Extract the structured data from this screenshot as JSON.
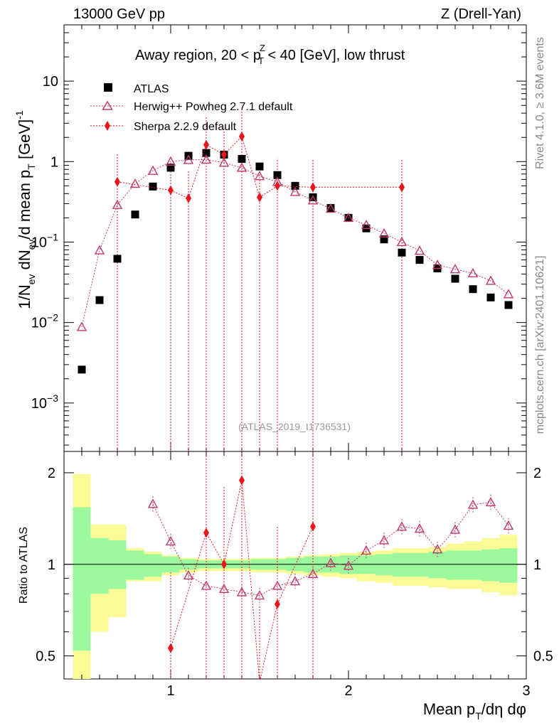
{
  "header": {
    "left": "13000 GeV pp",
    "right": "Z (Drell-Yan)"
  },
  "side_text": {
    "top": "Rivet 4.1.0, ≥ 3.6M events",
    "bottom": "mcplots.cern.ch [arXiv:2401.10621]"
  },
  "chart_data": [
    {
      "type": "scatter",
      "scale": "log",
      "title": "Away region, 20 < pTZ < 40 [GeV], low thrust",
      "title_parts": {
        "a": "Away region, 20 < p",
        "sup": "Z",
        "sub": "T",
        "b": " < 40 [GeV], low thrust"
      },
      "ylabel": "1/Nev dNev/d mean pT [GeV]-1",
      "ylabel_parts": {
        "a": "1/N",
        "s1": "ev",
        "b": " dN",
        "s2": "ev",
        "c": "/d mean p",
        "s3": "T",
        "d": " [GeV]",
        "s4": "-1"
      },
      "watermark": "(ATLAS_2019_I1736531)",
      "xlim": [
        0.4,
        3.0
      ],
      "ylim": [
        0.00025,
        50
      ],
      "y_ticks": [
        {
          "value": 0.001,
          "base": "10",
          "exp": "−3"
        },
        {
          "value": 0.01,
          "base": "10",
          "exp": "−2"
        },
        {
          "value": 0.1,
          "base": "10",
          "exp": "−1"
        },
        {
          "value": 1,
          "label": "1"
        },
        {
          "value": 10,
          "label": "10"
        }
      ],
      "legend": {
        "atlas": "ATLAS",
        "herwig": "Herwig++ Powheg 2.7.1 default",
        "sherpa": "Sherpa 2.2.9 default"
      },
      "series": [
        {
          "name": "ATLAS",
          "color": "#000000",
          "marker": "square",
          "x": [
            0.5,
            0.6,
            0.7,
            0.8,
            0.9,
            1.0,
            1.1,
            1.2,
            1.3,
            1.4,
            1.5,
            1.6,
            1.7,
            1.8,
            1.9,
            2.0,
            2.1,
            2.2,
            2.3,
            2.4,
            2.5,
            2.6,
            2.7,
            2.8,
            2.9
          ],
          "y": [
            0.0026,
            0.019,
            0.062,
            0.22,
            0.49,
            0.84,
            1.18,
            1.28,
            1.22,
            1.08,
            0.87,
            0.68,
            0.5,
            0.36,
            0.265,
            0.2,
            0.148,
            0.108,
            0.074,
            0.06,
            0.047,
            0.035,
            0.026,
            0.0205,
            0.0165
          ]
        },
        {
          "name": "Herwig++ Powheg 2.7.1 default",
          "color": "#c1386e",
          "marker": "triangle",
          "x": [
            0.5,
            0.6,
            0.7,
            0.8,
            0.9,
            1.0,
            1.1,
            1.2,
            1.3,
            1.4,
            1.5,
            1.6,
            1.7,
            1.8,
            1.9,
            2.0,
            2.1,
            2.2,
            2.3,
            2.4,
            2.5,
            2.6,
            2.7,
            2.8,
            2.9
          ],
          "y": [
            0.0088,
            0.079,
            0.29,
            0.53,
            0.77,
            1.0,
            1.05,
            1.06,
            0.97,
            0.84,
            0.66,
            0.56,
            0.42,
            0.33,
            0.26,
            0.2,
            0.163,
            0.128,
            0.1,
            0.078,
            0.052,
            0.046,
            0.041,
            0.033,
            0.0225
          ]
        },
        {
          "name": "Sherpa 2.2.9 default",
          "color": "#e8161c",
          "marker": "diamond",
          "x": [
            0.7,
            1.0,
            1.1,
            1.2,
            1.3,
            1.4,
            1.5,
            1.6,
            1.8,
            2.3
          ],
          "y": [
            0.56,
            0.44,
            0.35,
            1.62,
            1.22,
            2.05,
            0.36,
            0.5,
            0.48,
            0.48
          ]
        }
      ]
    },
    {
      "type": "scatter",
      "ylabel": "Ratio to ATLAS",
      "xlabel": "Mean pT/dη dφ",
      "xlabel_parts": {
        "a": "Mean p",
        "sub": "T",
        "b": "/dη dφ"
      },
      "xlim": [
        0.4,
        3.0
      ],
      "ylim": [
        0.42,
        2.35
      ],
      "x_ticks": [
        {
          "value": 1,
          "label": "1"
        },
        {
          "value": 2,
          "label": "2"
        },
        {
          "value": 3,
          "label": "3"
        }
      ],
      "y_ticks": [
        {
          "value": 0.5,
          "label": "0.5"
        },
        {
          "value": 1,
          "label": "1"
        },
        {
          "value": 2,
          "label": "2"
        }
      ],
      "bands": {
        "edges": [
          0.45,
          0.55,
          0.65,
          0.75,
          0.85,
          0.95,
          1.05,
          1.15,
          1.25,
          1.35,
          1.45,
          1.55,
          1.65,
          1.75,
          1.85,
          1.95,
          2.05,
          2.15,
          2.25,
          2.35,
          2.45,
          2.55,
          2.65,
          2.75,
          2.85,
          2.95
        ],
        "inner_lo": [
          0.52,
          0.8,
          0.83,
          0.89,
          0.91,
          0.94,
          0.96,
          0.97,
          0.97,
          0.97,
          0.96,
          0.96,
          0.95,
          0.94,
          0.94,
          0.93,
          0.93,
          0.92,
          0.91,
          0.91,
          0.9,
          0.89,
          0.89,
          0.88,
          0.87
        ],
        "inner_hi": [
          1.54,
          1.22,
          1.2,
          1.11,
          1.08,
          1.06,
          1.04,
          1.03,
          1.03,
          1.03,
          1.04,
          1.04,
          1.05,
          1.06,
          1.06,
          1.07,
          1.07,
          1.08,
          1.09,
          1.09,
          1.1,
          1.11,
          1.11,
          1.12,
          1.13
        ],
        "outer_lo": [
          0.42,
          0.6,
          0.67,
          0.88,
          0.88,
          0.92,
          0.94,
          0.95,
          0.95,
          0.95,
          0.94,
          0.94,
          0.93,
          0.92,
          0.91,
          0.9,
          0.88,
          0.87,
          0.85,
          0.85,
          0.84,
          0.83,
          0.83,
          0.81,
          0.79
        ],
        "outer_hi": [
          1.98,
          1.35,
          1.35,
          1.13,
          1.1,
          1.07,
          1.05,
          1.04,
          1.04,
          1.04,
          1.05,
          1.05,
          1.06,
          1.07,
          1.08,
          1.09,
          1.1,
          1.11,
          1.13,
          1.13,
          1.14,
          1.17,
          1.19,
          1.22,
          1.25
        ],
        "inner_color": "#9cf89c",
        "outer_color": "#fafa96"
      },
      "series": [
        {
          "name": "Herwig++ Powheg 2.7.1 default",
          "color": "#c1386e",
          "marker": "triangle",
          "x": [
            0.9,
            1.0,
            1.1,
            1.2,
            1.3,
            1.4,
            1.5,
            1.6,
            1.7,
            1.8,
            1.9,
            2.0,
            2.1,
            2.2,
            2.3,
            2.4,
            2.5,
            2.6,
            2.7,
            2.8,
            2.9
          ],
          "y": [
            1.58,
            1.19,
            0.92,
            0.85,
            0.83,
            0.81,
            0.79,
            0.85,
            0.88,
            0.93,
            1.01,
            0.99,
            1.11,
            1.2,
            1.33,
            1.31,
            1.12,
            1.3,
            1.57,
            1.6,
            1.34
          ]
        },
        {
          "name": "Sherpa 2.2.9 default",
          "color": "#e8161c",
          "marker": "diamond",
          "x": [
            1.0,
            1.2,
            1.3,
            1.4,
            1.5,
            1.6,
            1.8
          ],
          "y": [
            0.53,
            1.27,
            1.0,
            1.89,
            0.41,
            0.74,
            1.33
          ]
        }
      ]
    }
  ]
}
